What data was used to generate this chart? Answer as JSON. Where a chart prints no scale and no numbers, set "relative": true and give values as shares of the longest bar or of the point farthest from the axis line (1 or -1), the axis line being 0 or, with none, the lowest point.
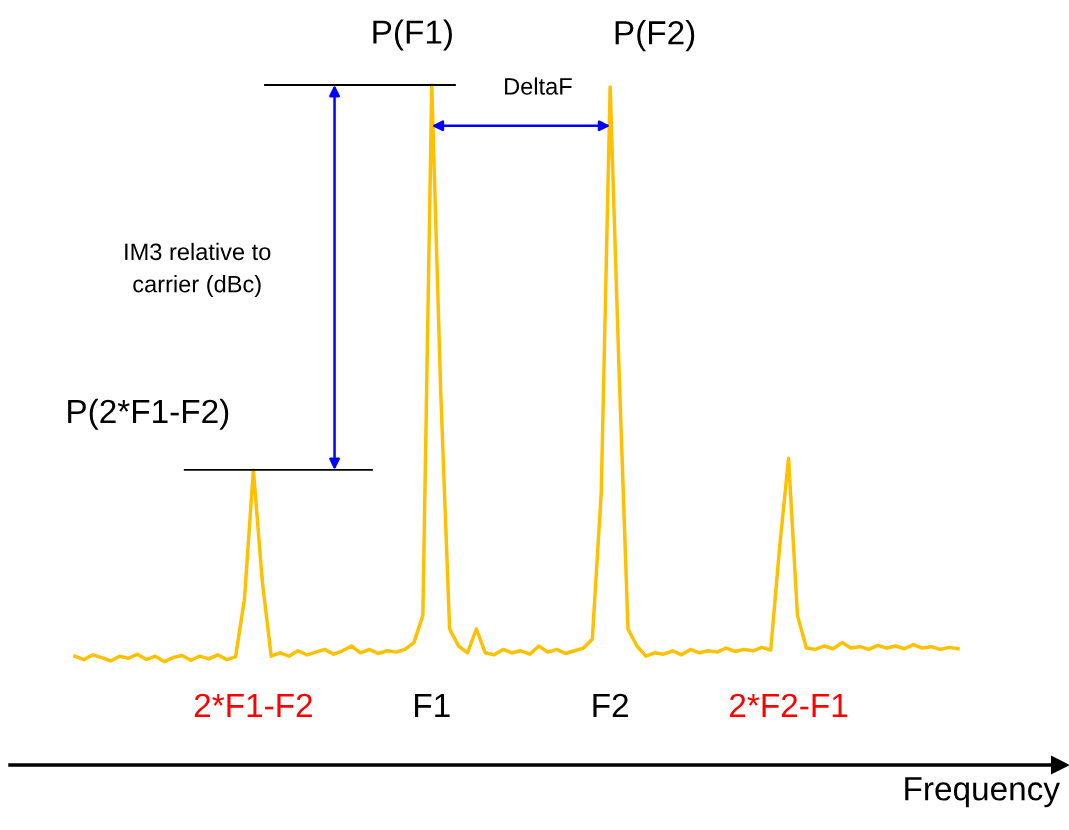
{
  "chart_data": {
    "type": "line",
    "relative": true,
    "xlabel": "Frequency",
    "categories": [
      null,
      null,
      null,
      null,
      null,
      null,
      null,
      null,
      null,
      null,
      null,
      null,
      null,
      null,
      null,
      null,
      null,
      null,
      null,
      null,
      "2*F1-F2",
      null,
      null,
      null,
      null,
      null,
      null,
      null,
      null,
      null,
      null,
      null,
      null,
      null,
      null,
      null,
      null,
      null,
      null,
      null,
      "F1",
      null,
      null,
      null,
      null,
      null,
      null,
      null,
      null,
      null,
      null,
      null,
      null,
      null,
      null,
      null,
      null,
      null,
      null,
      null,
      "F2",
      null,
      null,
      null,
      null,
      null,
      null,
      null,
      null,
      null,
      null,
      null,
      null,
      null,
      null,
      null,
      null,
      null,
      null,
      null,
      "2*F2-F1",
      null,
      null,
      null,
      null,
      null,
      null,
      null,
      null,
      null,
      null,
      null,
      null,
      null,
      null,
      null,
      null,
      null,
      null,
      null
    ],
    "series": [
      {
        "color": "#ffc000",
        "values": [
          0.16,
          0.155,
          0.162,
          0.158,
          0.153,
          0.16,
          0.157,
          0.163,
          0.155,
          0.16,
          0.152,
          0.158,
          0.161,
          0.154,
          0.16,
          0.156,
          0.162,
          0.155,
          0.159,
          0.244,
          0.434,
          0.27,
          0.16,
          0.165,
          0.16,
          0.168,
          0.162,
          0.166,
          0.17,
          0.163,
          0.168,
          0.175,
          0.165,
          0.17,
          0.164,
          0.168,
          0.166,
          0.17,
          0.18,
          0.22,
          1.0,
          0.55,
          0.2,
          0.175,
          0.165,
          0.2,
          0.165,
          0.162,
          0.17,
          0.165,
          0.168,
          0.163,
          0.175,
          0.166,
          0.17,
          0.164,
          0.168,
          0.172,
          0.185,
          0.4,
          0.997,
          0.58,
          0.2,
          0.175,
          0.16,
          0.165,
          0.163,
          0.168,
          0.162,
          0.17,
          0.165,
          0.168,
          0.166,
          0.172,
          0.167,
          0.17,
          0.168,
          0.173,
          0.169,
          0.32,
          0.451,
          0.22,
          0.172,
          0.17,
          0.175,
          0.171,
          0.18,
          0.172,
          0.174,
          0.17,
          0.176,
          0.172,
          0.175,
          0.171,
          0.177,
          0.172,
          0.174,
          0.17,
          0.173,
          0.171
        ]
      }
    ],
    "line_style": "solid",
    "ref_lines": [
      {
        "axis": "y",
        "value": 1.0,
        "color": "#000000"
      },
      {
        "axis": "y",
        "value": 0.434,
        "color": "#000000"
      }
    ],
    "annotations": [
      {
        "text": "P(F1)",
        "x": "F1",
        "y": 1.0
      },
      {
        "text": "P(F2)",
        "x": "F2",
        "y": 0.997
      },
      {
        "text": "P(2*F1-F2)",
        "x": "2*F1-F2",
        "y": 0.434
      },
      "DeltaF",
      "IM3 relative to\ncarrier (dBc)"
    ]
  }
}
